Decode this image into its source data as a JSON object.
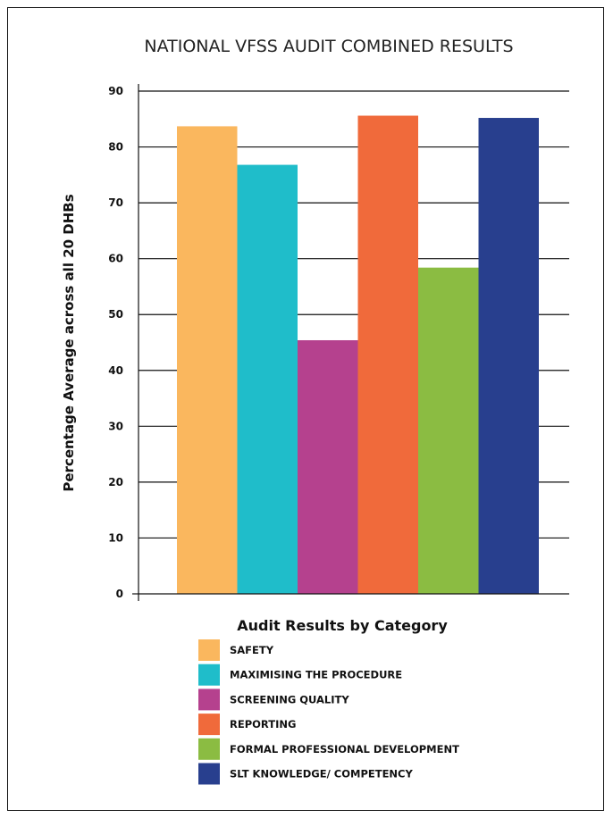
{
  "chart_data": {
    "type": "bar",
    "title": "NATIONAL VFSS AUDIT COMBINED RESULTS",
    "ylabel": "Percentage Average across all 20 DHBs",
    "xlabel": "",
    "ylim": [
      0,
      90
    ],
    "yticks": [
      0,
      10,
      20,
      30,
      40,
      50,
      60,
      70,
      80,
      90
    ],
    "grid": true,
    "legend_title": "Audit Results by Category",
    "legend_position": "bottom",
    "categories": [
      "SAFETY",
      "MAXIMISING THE PROCEDURE",
      "SCREENING QUALITY",
      "REPORTING",
      "FORMAL PROFESSIONAL DEVELOPMENT",
      "SLT KNOWLEDGE/ COMPETENCY"
    ],
    "values": [
      83.7,
      76.8,
      45.4,
      85.6,
      58.4,
      85.2
    ],
    "colors": [
      "#FAB75E",
      "#1FBDCA",
      "#B5418E",
      "#F06A3B",
      "#8BBC42",
      "#283F8E"
    ]
  }
}
